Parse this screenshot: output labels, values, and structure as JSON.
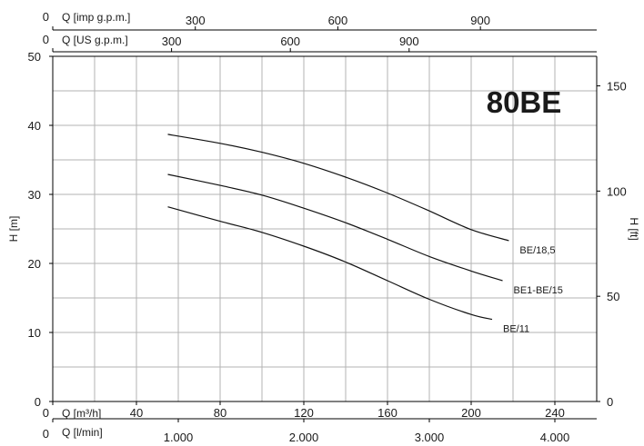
{
  "chart_data": {
    "type": "line",
    "title": "80BE",
    "x_axes": {
      "imp_gpm": {
        "label": "Q [imp g.p.m.]",
        "ticks": [
          "0",
          "300",
          "600",
          "900"
        ],
        "values": [
          0,
          300,
          600,
          900
        ]
      },
      "us_gpm": {
        "label": "Q [US g.p.m.]",
        "ticks": [
          "0",
          "300",
          "600",
          "900"
        ],
        "values": [
          0,
          300,
          600,
          900
        ]
      },
      "m3h": {
        "label": "Q [m³/h]",
        "ticks": [
          "0",
          "40",
          "80",
          "120",
          "160",
          "200",
          "240"
        ],
        "values": [
          0,
          40,
          80,
          120,
          160,
          200,
          240
        ],
        "xlim": [
          0,
          260
        ]
      },
      "lmin": {
        "label": "Q [l/min]",
        "ticks": [
          "0",
          "1.000",
          "2.000",
          "3.000",
          "4.000"
        ],
        "values": [
          0,
          1000,
          2000,
          3000,
          4000
        ]
      }
    },
    "y_axes": {
      "left": {
        "label": "H [m]",
        "ticks": [
          "0",
          "10",
          "20",
          "30",
          "40",
          "50"
        ],
        "values": [
          0,
          10,
          20,
          30,
          40,
          50
        ],
        "ylim": [
          0,
          50
        ]
      },
      "right": {
        "label": "H [ft]",
        "ticks": [
          "0",
          "50",
          "100",
          "150"
        ],
        "values": [
          0,
          50,
          100,
          150
        ]
      }
    },
    "grid": true,
    "series": [
      {
        "name": "BE/18,5",
        "x": [
          55,
          80,
          100,
          120,
          140,
          160,
          180,
          200,
          218
        ],
        "y": [
          38.7,
          37.4,
          36.1,
          34.5,
          32.5,
          30.2,
          27.6,
          24.9,
          23.3
        ]
      },
      {
        "name": "BE1-BE/15",
        "x": [
          55,
          80,
          100,
          120,
          140,
          160,
          180,
          200,
          215
        ],
        "y": [
          32.9,
          31.3,
          29.9,
          28.0,
          25.9,
          23.5,
          21.0,
          18.9,
          17.5
        ]
      },
      {
        "name": "BE/11",
        "x": [
          55,
          80,
          100,
          120,
          140,
          160,
          180,
          200,
          210
        ],
        "y": [
          28.2,
          26.1,
          24.5,
          22.5,
          20.2,
          17.5,
          14.8,
          12.6,
          11.9
        ]
      }
    ]
  }
}
